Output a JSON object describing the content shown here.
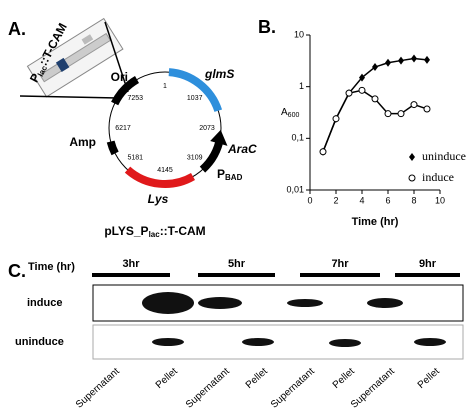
{
  "panel_a": {
    "label": "A.",
    "inset_label": {
      "main": "P",
      "sub": "lac",
      "rest": "::T-CAM"
    },
    "features": [
      {
        "main": "Ori"
      },
      {
        "main": "glmS"
      },
      {
        "main": "AraC"
      },
      {
        "main": "P",
        "sub": "BAD"
      },
      {
        "main": "Lys"
      },
      {
        "main": "Amp"
      }
    ],
    "positions": [
      "1",
      "1037",
      "2073",
      "3109",
      "4145",
      "5181",
      "6217",
      "7253"
    ],
    "caption": {
      "main": "pLYS_P",
      "sub": "lac",
      "rest": "::T-CAM"
    }
  },
  "chart_data": {
    "type": "line",
    "panel_label": "B.",
    "x_label": "Time (hr)",
    "y_label": "A",
    "y_label_subscript": "600",
    "x": [
      1,
      2,
      3,
      4,
      5,
      6,
      7,
      8,
      9
    ],
    "series": [
      {
        "name": "uninduce",
        "color": "#000000",
        "marker": "diamond",
        "values": [
          0.055,
          0.24,
          0.75,
          1.5,
          2.4,
          2.9,
          3.2,
          3.5,
          3.3
        ]
      },
      {
        "name": "induce",
        "color": "#000000",
        "marker": "circle",
        "values": [
          0.055,
          0.24,
          0.75,
          0.85,
          0.58,
          0.3,
          0.3,
          0.45,
          0.37
        ]
      }
    ],
    "xlim": [
      0,
      10
    ],
    "xticks": [
      0,
      2,
      4,
      6,
      8,
      10
    ],
    "ylim": [
      0.01,
      10
    ],
    "yscale": "log",
    "yticks": [
      {
        "value": 0.01,
        "label": "0,01"
      },
      {
        "value": 0.1,
        "label": "0,1"
      },
      1,
      10
    ]
  },
  "panel_c": {
    "label": "C.",
    "time_label": "Time (hr)",
    "times": [
      "3hr",
      "5hr",
      "7hr",
      "9hr"
    ],
    "rows": [
      "induce",
      "uninduce"
    ],
    "lanes": [
      "Supernatant",
      "Pellet",
      "Supernatant",
      "Pellet",
      "Supernatant",
      "Pellet",
      "Supernatant",
      "Pellet"
    ]
  }
}
